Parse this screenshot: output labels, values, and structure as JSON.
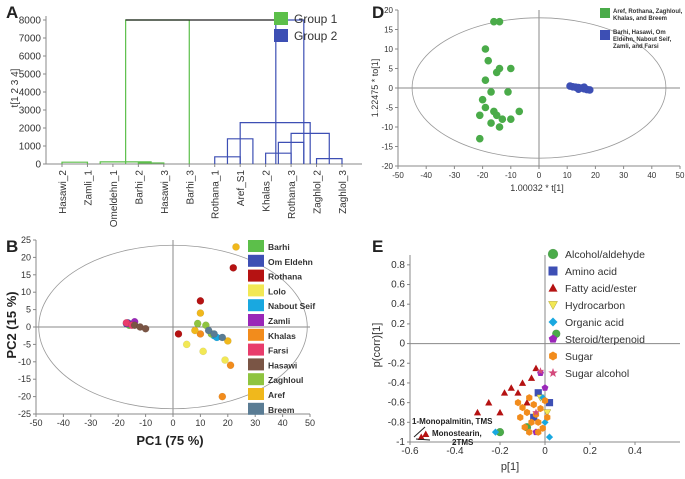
{
  "colors": {
    "axis": "#888888",
    "ellipse": "#999999",
    "group1": "#5cbf4a",
    "group2": "#3d4fb4",
    "text": "#333333"
  },
  "chart_data": [
    {
      "id": "A",
      "panel_letter": "A",
      "type": "dendrogram",
      "ylabel": "t[1 2 3 4]",
      "ylim": [
        0,
        8000
      ],
      "yticks": [
        0,
        1000,
        2000,
        3000,
        4000,
        5000,
        6000,
        7000,
        8000
      ],
      "leaves": [
        "Hasawi_2",
        "Zamli_1",
        "Omeldehn_1",
        "Barhi_2",
        "Hasawi_3",
        "Barhi_3",
        "Rothana_1",
        "Aref_S1",
        "Khalas_2",
        "Rothana_3",
        "Zaghlol_2",
        "Zaghlol_3"
      ],
      "legend": [
        {
          "label": "Group 1",
          "color": "#5cbf4a"
        },
        {
          "label": "Group 2",
          "color": "#3d4fb4"
        }
      ],
      "merges": [
        {
          "group": 1,
          "left": 0,
          "right": 1,
          "height": 100
        },
        {
          "group": 1,
          "left": 3,
          "right": 4,
          "height": 60
        },
        {
          "group": 1,
          "left": 1.5,
          "right": 3.5,
          "height": 120
        },
        {
          "group": 1,
          "left": 2.5,
          "right": 5,
          "height": 8000
        },
        {
          "group": 2,
          "left": 6,
          "right": 7,
          "height": 400
        },
        {
          "group": 2,
          "left": 6.5,
          "right": 7.5,
          "height": 1400
        },
        {
          "group": 2,
          "left": 8,
          "right": 9,
          "height": 600
        },
        {
          "group": 2,
          "left": 8.5,
          "right": 9.5,
          "height": 1200
        },
        {
          "group": 2,
          "left": 10,
          "right": 11,
          "height": 300
        },
        {
          "group": 2,
          "left": 9,
          "right": 10.5,
          "height": 1700
        },
        {
          "group": 2,
          "left": 7,
          "right": 9.75,
          "height": 2300
        },
        {
          "group": 2,
          "left": 8.4,
          "right": 9.5,
          "height": 8000
        }
      ]
    },
    {
      "id": "B",
      "panel_letter": "B",
      "type": "scatter",
      "xlabel": "PC1 (75 %)",
      "ylabel": "PC2 (15 %)",
      "xlim": [
        -50,
        50
      ],
      "ylim": [
        -25,
        25
      ],
      "xticks": [
        -50,
        -40,
        -30,
        -20,
        -10,
        0,
        10,
        20,
        30,
        40,
        50
      ],
      "yticks": [
        -25,
        -20,
        -15,
        -10,
        -5,
        0,
        5,
        10,
        15,
        20,
        25
      ],
      "ellipse": {
        "cx": 0,
        "cy": 0,
        "rx": 49,
        "ry": 23.5
      },
      "series": [
        {
          "name": "Barhi",
          "color": "#5cbf4a",
          "points": [
            [
              -16,
              0.5
            ],
            [
              -15.5,
              0.8
            ]
          ]
        },
        {
          "name": "Om Eldehn",
          "color": "#3d4fb4",
          "points": [
            [
              -17,
              1
            ],
            [
              -16.5,
              1.2
            ]
          ]
        },
        {
          "name": "Rothana",
          "color": "#b51212",
          "points": [
            [
              2,
              -2
            ],
            [
              10,
              7.5
            ],
            [
              22,
              17
            ]
          ]
        },
        {
          "name": "Lolo",
          "color": "#f2e855",
          "points": [
            [
              5,
              -5
            ],
            [
              11,
              -7
            ],
            [
              19,
              -9.5
            ]
          ]
        },
        {
          "name": "Nabout Seif",
          "color": "#19a8e0",
          "points": [
            [
              15,
              -2.5
            ],
            [
              16,
              -3
            ]
          ]
        },
        {
          "name": "Zamli",
          "color": "#9a27b8",
          "points": [
            [
              -16.5,
              1
            ],
            [
              -14,
              1.5
            ]
          ]
        },
        {
          "name": "Khalas",
          "color": "#f28c1c",
          "points": [
            [
              10,
              -2
            ],
            [
              18,
              -20
            ],
            [
              21,
              -11
            ]
          ]
        },
        {
          "name": "Farsi",
          "color": "#e83d6c",
          "points": [
            [
              -17,
              1.2
            ],
            [
              -15,
              0.5
            ]
          ]
        },
        {
          "name": "Hasawi",
          "color": "#7a5545",
          "points": [
            [
              -14,
              0.5
            ],
            [
              -12,
              0
            ],
            [
              -10,
              -0.5
            ]
          ]
        },
        {
          "name": "Zaghloul",
          "color": "#8fc440",
          "points": [
            [
              12,
              0.5
            ],
            [
              14,
              -2
            ],
            [
              9,
              1
            ]
          ]
        },
        {
          "name": "Aref",
          "color": "#f0b81c",
          "points": [
            [
              23,
              23
            ],
            [
              20,
              -4
            ],
            [
              10,
              4
            ],
            [
              8,
              -1
            ]
          ]
        },
        {
          "name": "Breem",
          "color": "#5a7c94",
          "points": [
            [
              13,
              -1
            ],
            [
              15,
              -2
            ],
            [
              18,
              -3
            ]
          ]
        }
      ]
    },
    {
      "id": "D",
      "panel_letter": "D",
      "type": "scatter",
      "xlabel": "1.00032 * t[1]",
      "ylabel": "1.22475 * to[1]",
      "xlim": [
        -50,
        50
      ],
      "ylim": [
        -20,
        20
      ],
      "xticks": [
        -50,
        -40,
        -30,
        -20,
        -10,
        0,
        10,
        20,
        30,
        40,
        50
      ],
      "yticks": [
        -20,
        -15,
        -10,
        -5,
        0,
        5,
        10,
        15,
        20
      ],
      "ellipse": {
        "cx": 0,
        "cy": 0,
        "rx": 45,
        "ry": 18
      },
      "series": [
        {
          "name": "Aref, Rothana, Zaghloul, Khalas, and Breem",
          "color": "#4aab49",
          "points": [
            [
              -16,
              17
            ],
            [
              -14,
              17
            ],
            [
              -19,
              10
            ],
            [
              -14,
              5
            ],
            [
              -15,
              4
            ],
            [
              -10,
              5
            ],
            [
              -19,
              2
            ],
            [
              -18,
              7
            ],
            [
              -17,
              -1
            ],
            [
              -11,
              -1
            ],
            [
              -20,
              -3
            ],
            [
              -19,
              -5
            ],
            [
              -16,
              -6
            ],
            [
              -7,
              -6
            ],
            [
              -21,
              -7
            ],
            [
              -15,
              -7
            ],
            [
              -13,
              -8
            ],
            [
              -10,
              -8
            ],
            [
              -17,
              -9
            ],
            [
              -14,
              -10
            ],
            [
              -21,
              -13
            ]
          ]
        },
        {
          "name": "Barhi, Hasawi, Om Eldehn, Nabout Seif, Zamli, and Farsi",
          "color": "#3d4fb4",
          "points": [
            [
              11,
              0.5
            ],
            [
              12,
              0.3
            ],
            [
              13,
              0.2
            ],
            [
              14,
              0.1
            ],
            [
              15,
              0
            ],
            [
              16,
              -0.2
            ],
            [
              17,
              -0.4
            ],
            [
              18,
              -0.5
            ],
            [
              16,
              0.2
            ],
            [
              14,
              -0.3
            ]
          ]
        }
      ]
    },
    {
      "id": "E",
      "panel_letter": "E",
      "type": "scatter",
      "xlabel": "p[1]",
      "ylabel": "p(corr)[1]",
      "xlim": [
        -0.6,
        0.6
      ],
      "ylim": [
        -1,
        0.9
      ],
      "xticks": [
        -0.6,
        -0.4,
        -0.2,
        0,
        0.2,
        0.4
      ],
      "yticks": [
        -1,
        -0.8,
        -0.6,
        -0.4,
        -0.2,
        0,
        0.2,
        0.4,
        0.6,
        0.8
      ],
      "annotations": [
        "1-Monopalmitin, TMS",
        "Monostearin,\n2TMS"
      ],
      "series": [
        {
          "name": "Alcohol/aldehyde",
          "color": "#4aab49",
          "marker": "circle",
          "points": [
            [
              0.05,
              0.1
            ],
            [
              -0.2,
              -0.9
            ],
            [
              -0.08,
              -0.85
            ]
          ]
        },
        {
          "name": "Amino acid",
          "color": "#3d4fb4",
          "marker": "square",
          "points": [
            [
              -0.03,
              -0.5
            ],
            [
              0.02,
              -0.6
            ],
            [
              -0.05,
              -0.75
            ]
          ]
        },
        {
          "name": "Fatty acid/ester",
          "color": "#b51212",
          "marker": "triangle",
          "points": [
            [
              -0.55,
              -0.95
            ],
            [
              -0.53,
              -0.92
            ],
            [
              -0.3,
              -0.7
            ],
            [
              -0.25,
              -0.6
            ],
            [
              -0.18,
              -0.5
            ],
            [
              -0.15,
              -0.45
            ],
            [
              -0.12,
              -0.5
            ],
            [
              -0.1,
              -0.4
            ],
            [
              -0.06,
              -0.35
            ],
            [
              -0.04,
              -0.25
            ],
            [
              -0.08,
              -0.6
            ],
            [
              -0.2,
              -0.7
            ]
          ]
        },
        {
          "name": "Hydrocarbon",
          "color": "#f2e855",
          "marker": "triangle-down",
          "points": [
            [
              -0.02,
              -0.55
            ],
            [
              0.01,
              -0.7
            ]
          ]
        },
        {
          "name": "Organic acid",
          "color": "#19a8e0",
          "marker": "diamond",
          "points": [
            [
              -0.22,
              -0.9
            ],
            [
              0.0,
              -0.8
            ],
            [
              0.02,
              -0.95
            ],
            [
              -0.01,
              -0.55
            ]
          ]
        },
        {
          "name": "Steroid/terpenoid",
          "color": "#9a27b8",
          "marker": "pentagon",
          "points": [
            [
              -0.04,
              -0.9
            ],
            [
              -0.02,
              -0.3
            ],
            [
              0.0,
              -0.45
            ]
          ]
        },
        {
          "name": "Sugar",
          "color": "#f28c1c",
          "marker": "hexagon",
          "points": [
            [
              -0.12,
              -0.6
            ],
            [
              -0.1,
              -0.65
            ],
            [
              -0.08,
              -0.7
            ],
            [
              -0.07,
              -0.55
            ],
            [
              -0.05,
              -0.62
            ],
            [
              -0.04,
              -0.72
            ],
            [
              -0.03,
              -0.8
            ],
            [
              -0.02,
              -0.66
            ],
            [
              0.0,
              -0.58
            ],
            [
              0.01,
              -0.75
            ],
            [
              -0.06,
              -0.8
            ],
            [
              -0.09,
              -0.85
            ],
            [
              -0.03,
              -0.9
            ],
            [
              -0.01,
              -0.86
            ],
            [
              -0.11,
              -0.75
            ],
            [
              -0.07,
              -0.9
            ]
          ]
        },
        {
          "name": "Sugar alcohol",
          "color": "#d44a7c",
          "marker": "star",
          "points": [
            [
              -0.02,
              -0.28
            ],
            [
              -0.04,
              -0.7
            ]
          ]
        }
      ]
    }
  ]
}
